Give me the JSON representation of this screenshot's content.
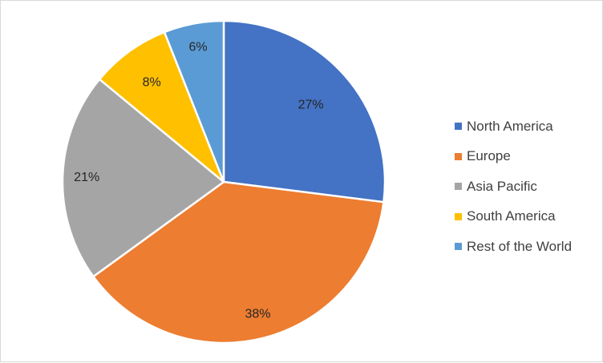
{
  "chart_data": {
    "type": "pie",
    "title": "",
    "categories": [
      "North America",
      "Europe",
      "Asia Pacific",
      "South America",
      "Rest of the World"
    ],
    "values": [
      27,
      38,
      21,
      8,
      6
    ],
    "value_labels": [
      "27%",
      "38%",
      "21%",
      "8%",
      "6%"
    ],
    "colors": [
      "#4472C4",
      "#ED7D31",
      "#A5A5A5",
      "#FFC000",
      "#5B9BD5"
    ],
    "start_angle_deg": 0,
    "direction": "clockwise",
    "legend_position": "right"
  }
}
